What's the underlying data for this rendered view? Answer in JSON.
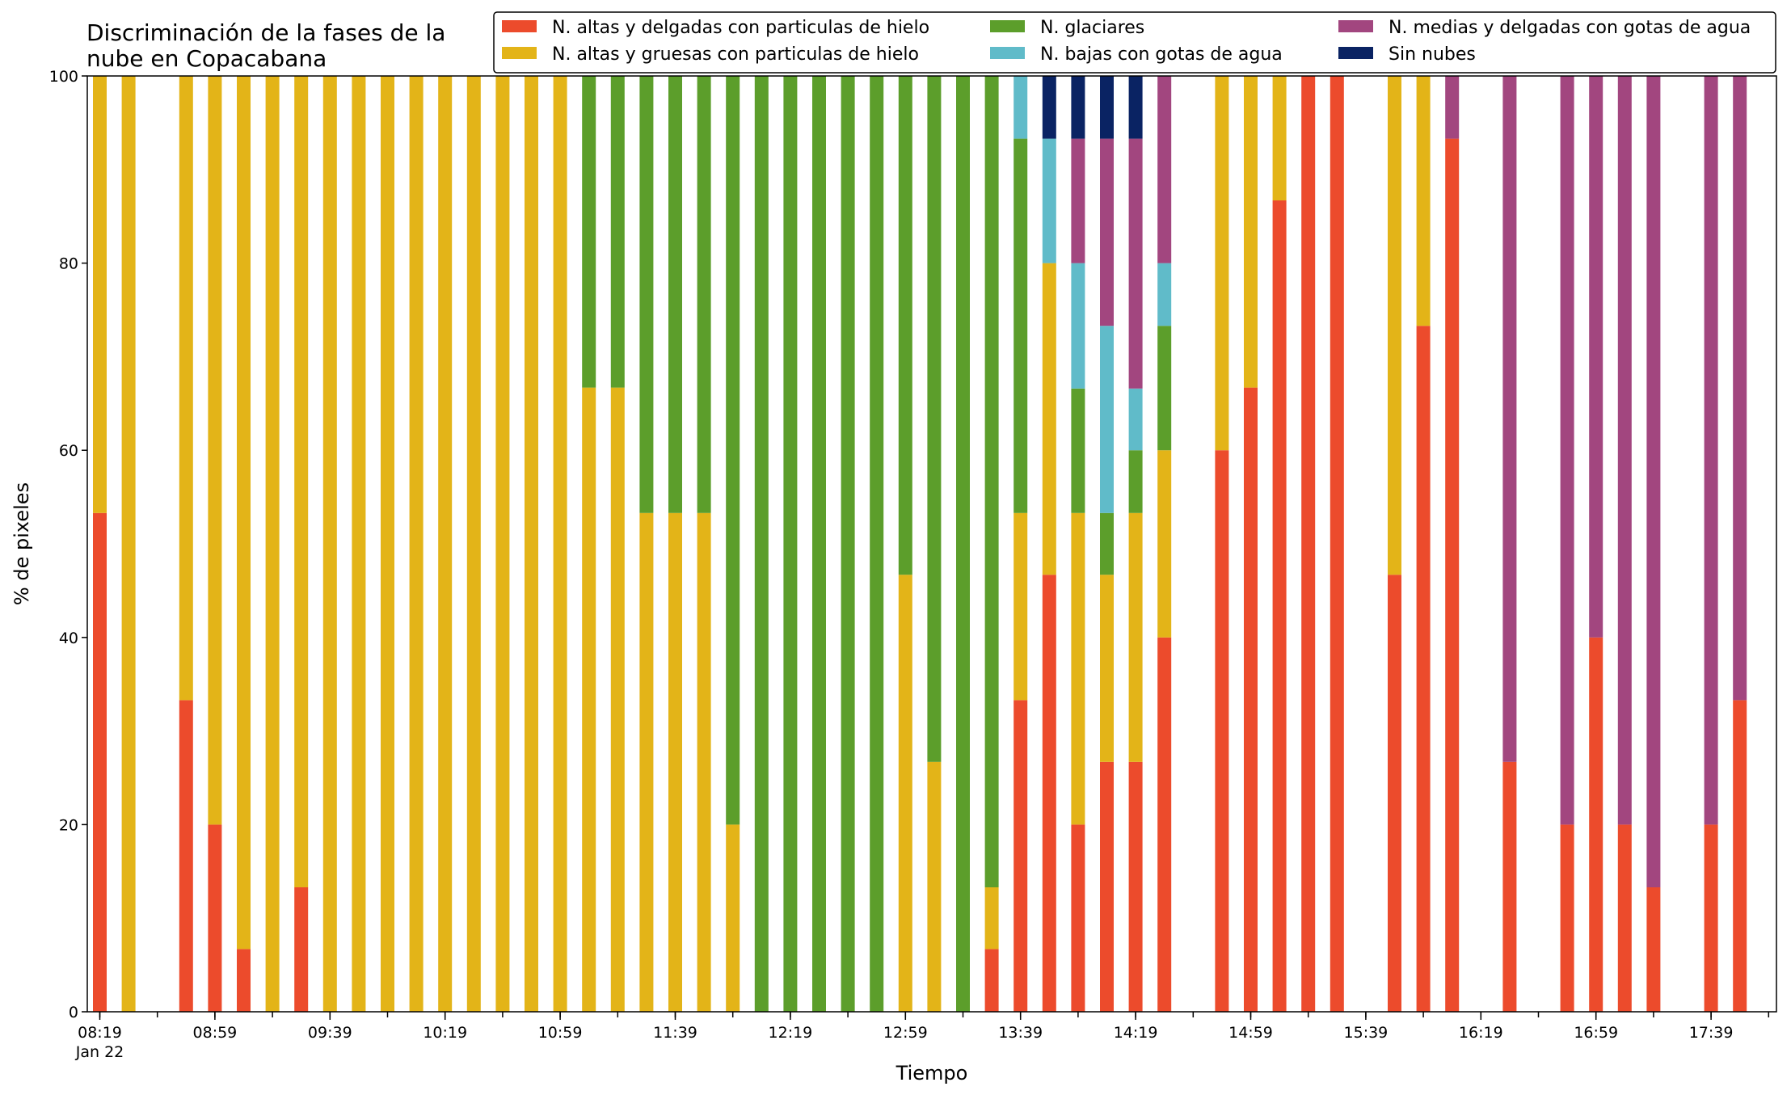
{
  "chart_data": {
    "type": "bar",
    "stacked": true,
    "title_lines": [
      "Discriminación de la fases de la",
      "nube en Copacabana"
    ],
    "xlabel": "Tiempo",
    "ylabel": "% de pixeles",
    "ylim": [
      0,
      100
    ],
    "yticks": [
      "0",
      "20",
      "40",
      "60",
      "80",
      "100"
    ],
    "xtick_labels": [
      "08:19",
      "08:59",
      "09:39",
      "10:19",
      "10:59",
      "11:39",
      "12:19",
      "12:59",
      "13:39",
      "14:19",
      "14:59",
      "15:39",
      "16:19",
      "16:59",
      "17:39"
    ],
    "xtick_sublabel": "Jan 22",
    "x_start": "08:19",
    "x_step_minutes": 10,
    "x_end": "17:59",
    "grid": false,
    "legend_position": "top-right",
    "categories": [
      "08:19",
      "08:29",
      "08:49",
      "08:59",
      "09:09",
      "09:19",
      "09:29",
      "09:39",
      "09:49",
      "09:59",
      "10:09",
      "10:19",
      "10:29",
      "10:39",
      "10:49",
      "10:59",
      "11:09",
      "11:19",
      "11:29",
      "11:39",
      "11:49",
      "11:59",
      "12:09",
      "12:19",
      "12:29",
      "12:39",
      "12:49",
      "12:59",
      "13:09",
      "13:19",
      "13:29",
      "13:39",
      "13:49",
      "13:59",
      "14:09",
      "14:19",
      "14:29",
      "14:49",
      "14:59",
      "15:09",
      "15:19",
      "15:29",
      "15:49",
      "15:59",
      "16:09",
      "16:29",
      "16:49",
      "16:59",
      "17:09",
      "17:19",
      "17:39",
      "17:49"
    ],
    "series": [
      {
        "name": "N. altas y delgadas con particulas de hielo",
        "color": "#ec4b2c",
        "values": [
          53.3,
          0,
          33.3,
          20,
          6.7,
          0,
          13.3,
          0,
          0,
          0,
          0,
          0,
          0,
          0,
          0,
          0,
          0,
          0,
          0,
          0,
          0,
          0,
          0,
          0,
          0,
          0,
          0,
          0,
          0,
          0,
          6.7,
          33.3,
          46.7,
          20,
          26.7,
          26.7,
          40,
          60,
          66.7,
          86.7,
          100,
          100,
          46.7,
          73.3,
          93.3,
          26.7,
          20,
          40,
          20,
          13.3,
          20,
          33.3
        ]
      },
      {
        "name": "N. altas y gruesas con particulas de hielo",
        "color": "#e3b418",
        "values": [
          46.7,
          100,
          66.7,
          80,
          93.3,
          100,
          86.7,
          100,
          100,
          100,
          100,
          100,
          100,
          100,
          100,
          100,
          66.7,
          66.7,
          53.3,
          53.3,
          53.3,
          20,
          0,
          0,
          0,
          0,
          0,
          46.7,
          26.7,
          0,
          6.6,
          20,
          33.3,
          33.3,
          20,
          26.6,
          20,
          40,
          33.3,
          13.3,
          0,
          0,
          53.3,
          26.7,
          0,
          0,
          0,
          0,
          0,
          0,
          0,
          0
        ]
      },
      {
        "name": "N. glaciares",
        "color": "#5c9e2b",
        "values": [
          0,
          0,
          0,
          0,
          0,
          0,
          0,
          0,
          0,
          0,
          0,
          0,
          0,
          0,
          0,
          0,
          33.3,
          33.3,
          46.7,
          46.7,
          46.7,
          80,
          100,
          100,
          100,
          100,
          100,
          53.3,
          73.3,
          100,
          86.7,
          40,
          0,
          13.3,
          6.6,
          6.7,
          13.3,
          0,
          0,
          0,
          0,
          0,
          0,
          0,
          0,
          0,
          0,
          0,
          0,
          0,
          0,
          0
        ]
      },
      {
        "name": "N. bajas con gotas de agua",
        "color": "#60bbc9",
        "values": [
          0,
          0,
          0,
          0,
          0,
          0,
          0,
          0,
          0,
          0,
          0,
          0,
          0,
          0,
          0,
          0,
          0,
          0,
          0,
          0,
          0,
          0,
          0,
          0,
          0,
          0,
          0,
          0,
          0,
          0,
          0,
          6.7,
          13.3,
          13.4,
          20,
          6.6,
          6.7,
          0,
          0,
          0,
          0,
          0,
          0,
          0,
          0,
          0,
          0,
          0,
          0,
          0,
          0,
          0
        ]
      },
      {
        "name": "N. medias y delgadas con gotas de agua",
        "color": "#a2467f",
        "values": [
          0,
          0,
          0,
          0,
          0,
          0,
          0,
          0,
          0,
          0,
          0,
          0,
          0,
          0,
          0,
          0,
          0,
          0,
          0,
          0,
          0,
          0,
          0,
          0,
          0,
          0,
          0,
          0,
          0,
          0,
          0,
          0,
          0,
          13.3,
          20,
          26.7,
          20,
          0,
          0,
          0,
          0,
          0,
          0,
          0,
          6.7,
          73.3,
          80,
          60,
          80,
          86.7,
          80,
          66.7
        ]
      },
      {
        "name": "Sin nubes",
        "color": "#0a2363",
        "values": [
          0,
          0,
          0,
          0,
          0,
          0,
          0,
          0,
          0,
          0,
          0,
          0,
          0,
          0,
          0,
          0,
          0,
          0,
          0,
          0,
          0,
          0,
          0,
          0,
          0,
          0,
          0,
          0,
          0,
          0,
          0,
          0,
          6.7,
          6.7,
          6.7,
          6.7,
          0,
          0,
          0,
          0,
          0,
          0,
          0,
          0,
          0,
          0,
          0,
          0,
          0,
          0,
          0,
          0
        ]
      }
    ]
  }
}
